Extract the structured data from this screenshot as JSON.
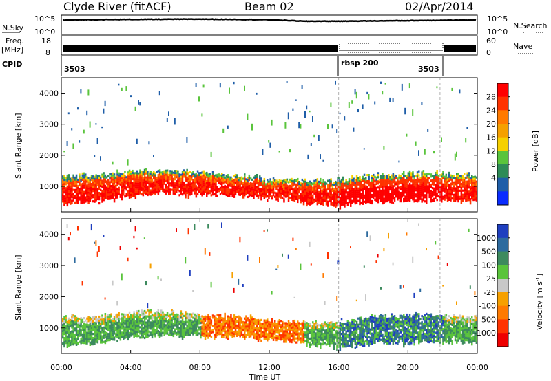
{
  "header": {
    "station": "Clyde River (fitACF)",
    "beam": "Beam 02",
    "date": "02/Apr/2014"
  },
  "top_panel": {
    "left_label": "N.Sky",
    "right_label": "N.Search",
    "left_ticks": [
      "10^5",
      "10^0"
    ],
    "right_ticks": [
      "10^5",
      "10^0"
    ]
  },
  "freq_panel": {
    "left_label_line1": "Freq.",
    "left_label_line2": "[MHz]",
    "right_label": "Nave",
    "left_ticks": [
      "18",
      "8"
    ],
    "right_ticks": [
      "60",
      "0"
    ]
  },
  "cpid_panel": {
    "label": "CPID",
    "segments": [
      "3503",
      "rbsp 200",
      "3503"
    ]
  },
  "power_panel": {
    "ylabel": "Slant Range [km]",
    "colorbar_label": "Power [dB]",
    "colorbar_ticks": [
      "28",
      "24",
      "20",
      "16",
      "12",
      "8",
      "4"
    ],
    "colorbar_colors": [
      "#ff0000",
      "#ff3300",
      "#ff7a00",
      "#f5a000",
      "#f6d000",
      "#5ac43c",
      "#2e8b57",
      "#1f5ea8",
      "#0a2cff"
    ]
  },
  "velocity_panel": {
    "ylabel": "Slant Range [km]",
    "colorbar_label": "Velocity [m s",
    "colorbar_superscript": "-1",
    "colorbar_label_end": "]",
    "colorbar_ticks": [
      "1000",
      "500",
      "100",
      "25",
      "-25",
      "-100",
      "-500",
      "-1000"
    ],
    "colorbar_colors": [
      "#1f3fbf",
      "#2e6b9e",
      "#3d8a5e",
      "#5ac43c",
      "#c8c8c8",
      "#f6a000",
      "#ff7a00",
      "#ff3300",
      "#ee0000"
    ]
  },
  "xaxis": {
    "label": "Time UT",
    "ticks": [
      "00:00",
      "04:00",
      "08:00",
      "12:00",
      "16:00",
      "20:00",
      "00:00"
    ]
  },
  "chart_data": {
    "type": "heatmap",
    "title": "Clyde River (fitACF)  Beam 02  02/Apr/2014",
    "xlabel": "Time UT",
    "ylabel": "Slant Range [km]",
    "x_range_hours": [
      0,
      24
    ],
    "ylim": [
      180,
      4500
    ],
    "y_ticks": [
      1000,
      2000,
      3000,
      4000
    ],
    "mode_changes_hours": [
      16,
      21.85
    ],
    "panels": [
      {
        "name": "Power",
        "unit": "dB",
        "scale_range": [
          0,
          30
        ],
        "band_center_km": [
          [
            0,
            900
          ],
          [
            2,
            950
          ],
          [
            4,
            1100
          ],
          [
            6,
            1150
          ],
          [
            8,
            1100
          ],
          [
            10,
            1050
          ],
          [
            12,
            950
          ],
          [
            14,
            850
          ],
          [
            16,
            800
          ],
          [
            18,
            950
          ],
          [
            20,
            1000
          ],
          [
            22,
            1000
          ],
          [
            24,
            950
          ]
        ],
        "band_halfwidth_km": [
          [
            0,
            450
          ],
          [
            4,
            400
          ],
          [
            8,
            350
          ],
          [
            12,
            300
          ],
          [
            16,
            400
          ],
          [
            20,
            450
          ],
          [
            24,
            400
          ]
        ]
      },
      {
        "name": "Velocity",
        "unit": "m s-1",
        "scale_range": [
          -1000,
          1000
        ],
        "band_center_km": [
          [
            0,
            900
          ],
          [
            2,
            950
          ],
          [
            4,
            1100
          ],
          [
            6,
            1150
          ],
          [
            8,
            1100
          ],
          [
            10,
            1050
          ],
          [
            12,
            950
          ],
          [
            14,
            850
          ],
          [
            16,
            800
          ],
          [
            18,
            950
          ],
          [
            20,
            1000
          ],
          [
            22,
            1000
          ],
          [
            24,
            950
          ]
        ],
        "band_halfwidth_km": [
          [
            0,
            450
          ],
          [
            4,
            400
          ],
          [
            8,
            350
          ],
          [
            12,
            300
          ],
          [
            16,
            400
          ],
          [
            20,
            450
          ],
          [
            24,
            400
          ]
        ]
      }
    ],
    "noise_sky_log10": [
      [
        0,
        4.2
      ],
      [
        1,
        4.4
      ],
      [
        4,
        4.5
      ],
      [
        8,
        4.6
      ],
      [
        12,
        4.4
      ],
      [
        14,
        3.9
      ],
      [
        16,
        3.9
      ],
      [
        20,
        4.1
      ],
      [
        24,
        4.3
      ]
    ]
  }
}
